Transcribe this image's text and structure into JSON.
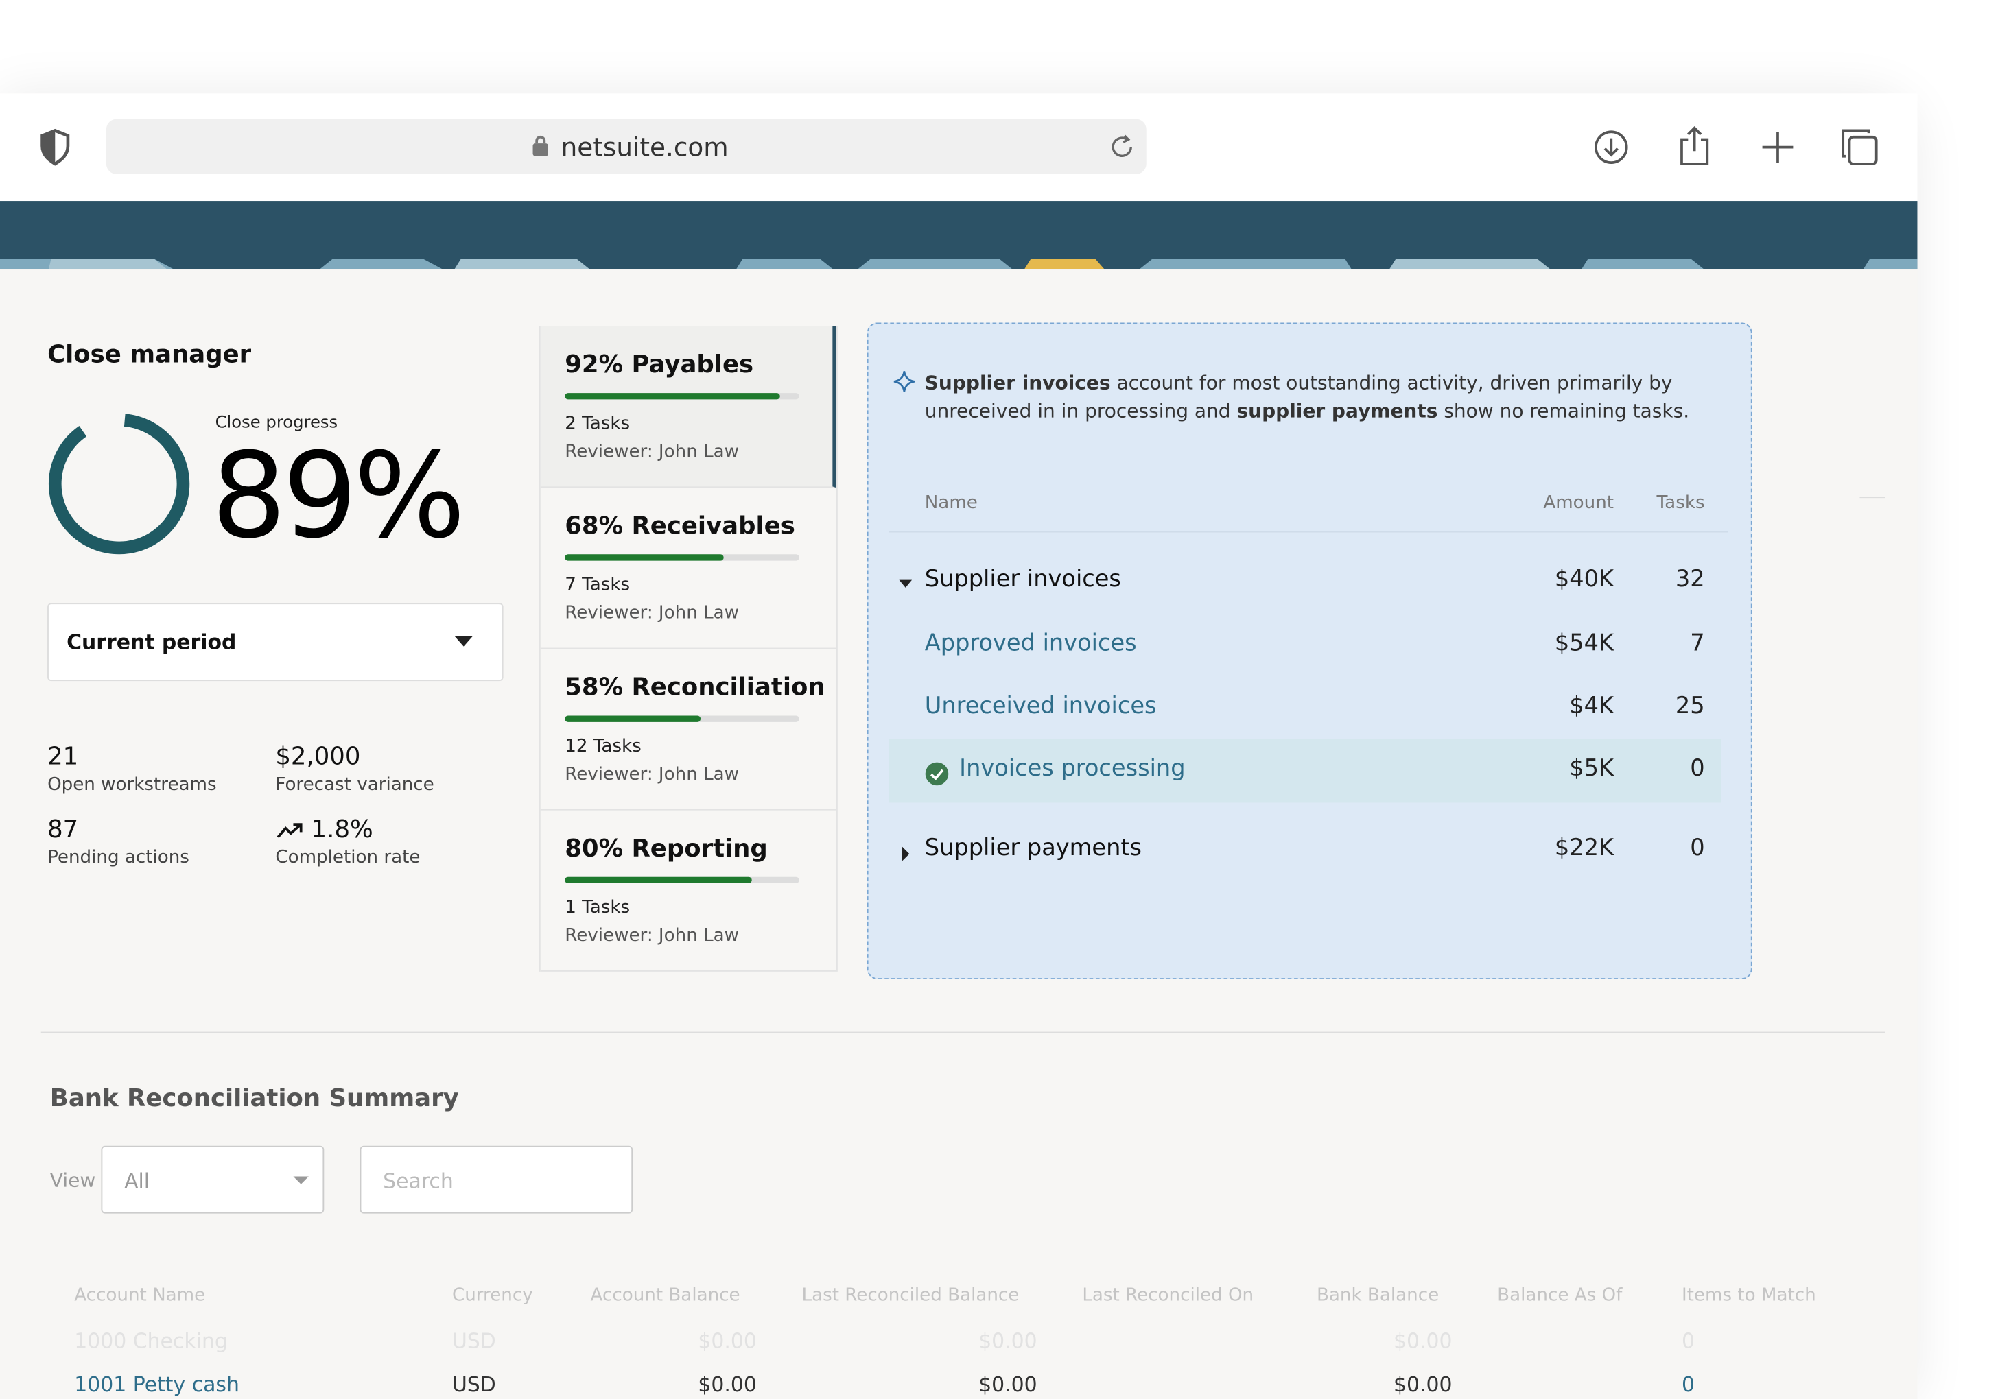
{
  "browser": {
    "url": "netsuite.com"
  },
  "close_manager": {
    "title": "Close manager",
    "progress_label": "Close progress",
    "progress": {
      "value": 89,
      "label": "89%"
    },
    "period": "Current period",
    "stats": [
      {
        "value": "21",
        "label": "Open workstreams"
      },
      {
        "value": "$2,000",
        "label": "Forecast variance"
      },
      {
        "value": "87",
        "label": "Pending actions"
      },
      {
        "value": "1.8%",
        "label": "Completion rate"
      }
    ]
  },
  "tasks": [
    {
      "title": "92% Payables",
      "progress": 92,
      "count": "2 Tasks",
      "reviewer": "Reviewer: John Law"
    },
    {
      "title": "68% Receivables",
      "progress": 68,
      "count": "7 Tasks",
      "reviewer": "Reviewer: John Law"
    },
    {
      "title": "58% Reconciliation",
      "progress": 58,
      "count": "12 Tasks",
      "reviewer": "Reviewer: John Law"
    },
    {
      "title": "80% Reporting",
      "progress": 80,
      "count": "1 Tasks",
      "reviewer": "Reviewer: John Law"
    }
  ],
  "insight": {
    "segments": [
      {
        "text": "Supplier invoices",
        "bold": true
      },
      {
        "text": " account for most outstanding activity, driven primarily by unreceived in in processing and ",
        "bold": false
      },
      {
        "text": "supplier payments",
        "bold": true
      },
      {
        "text": " show no remaining tasks.",
        "bold": false
      }
    ],
    "columns": [
      "Name",
      "Amount",
      "Tasks"
    ],
    "rows": [
      {
        "name": "Supplier invoices",
        "amount": "$40K",
        "tasks": 32,
        "level": 0,
        "expanded": true
      },
      {
        "name": "Approved invoices",
        "amount": "$54K",
        "tasks": 7,
        "level": 1
      },
      {
        "name": "Unreceived invoices",
        "amount": "$4K",
        "tasks": 25,
        "level": 1
      },
      {
        "name": "Invoices processing",
        "amount": "$5K",
        "tasks": 0,
        "level": 1,
        "done": true
      },
      {
        "name": "Supplier payments",
        "amount": "$22K",
        "tasks": 0,
        "level": 0,
        "expanded": false
      }
    ]
  },
  "bank": {
    "title": "Bank Reconciliation Summary",
    "view_label": "View",
    "view": "All",
    "search_placeholder": "Search",
    "columns": [
      "Account Name",
      "Currency",
      "Account Balance",
      "Last Reconciled Balance",
      "Last Reconciled On",
      "Bank Balance",
      "Balance As Of",
      "Items to Match"
    ],
    "rows": [
      [
        "1000 Checking",
        "USD",
        "$0.00",
        "$0.00",
        null,
        "$0.00",
        null,
        "0"
      ],
      [
        "1001 Petty cash",
        "USD",
        "$0.00",
        "$0.00",
        null,
        "$0.00",
        null,
        "0"
      ]
    ]
  }
}
